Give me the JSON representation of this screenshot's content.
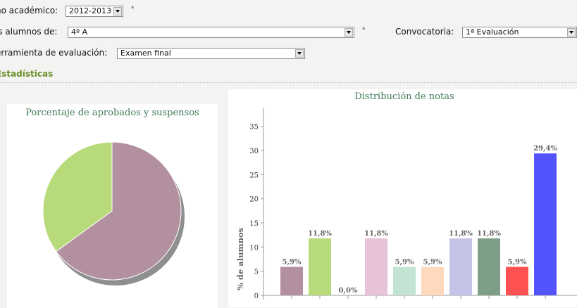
{
  "form": {
    "year_label": "ño académico:",
    "year_value": "2012-2013",
    "required_mark": "*",
    "students_label": "is alumnos de:",
    "students_value": "4º A",
    "convocatoria_label": "Convocatoria:",
    "convocatoria_value": "1ª Evaluación",
    "tool_label": "erramienta de evaluación:",
    "tool_value": "Examen final"
  },
  "section_title": "Estadísticas",
  "pie_chart": {
    "title": "Porcentaje de aprobados y suspensos",
    "colors": [
      "#b3909f",
      "#b7da7b"
    ]
  },
  "chart_data": {
    "type": "bar",
    "title": "Distribución de notas",
    "ylabel": "% de alumnos",
    "ylim": [
      0,
      37
    ],
    "yticks": [
      0,
      5,
      10,
      15,
      20,
      25,
      30,
      35
    ],
    "values": [
      5.9,
      11.8,
      0.0,
      11.8,
      5.9,
      5.9,
      11.8,
      11.8,
      5.9,
      29.4
    ],
    "labels": [
      "5,9%",
      "11,8%",
      "0,0%",
      "11,8%",
      "5,9%",
      "5,9%",
      "11,8%",
      "11,8%",
      "5,9%",
      "29,4%"
    ],
    "colors": [
      "#b3909f",
      "#b7da7b",
      "#a7a7a7",
      "#e6c3d6",
      "#c4e4d3",
      "#ffd9bd",
      "#c4c3e7",
      "#7f9e88",
      "#ff5151",
      "#5454ff"
    ]
  }
}
